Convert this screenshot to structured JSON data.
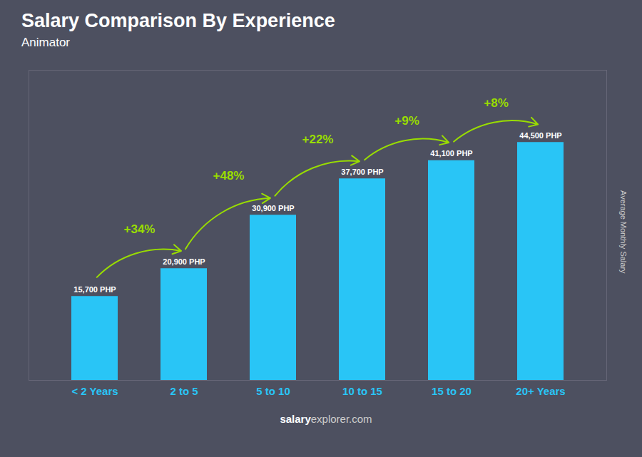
{
  "chart_data": {
    "type": "bar",
    "title": "Salary Comparison By Experience",
    "subtitle": "Animator",
    "ylabel": "Average Monthly Salary",
    "categories": [
      "< 2 Years",
      "2 to 5",
      "5 to 10",
      "10 to 15",
      "15 to 20",
      "20+ Years"
    ],
    "values": [
      15700,
      20900,
      30900,
      37700,
      41100,
      44500
    ],
    "value_labels": [
      "15,700 PHP",
      "20,900 PHP",
      "30,900 PHP",
      "37,700 PHP",
      "41,100 PHP",
      "44,500 PHP"
    ],
    "data_labels": true,
    "color": "#29c5f6",
    "ylim": [
      0,
      58000
    ],
    "tick_labels": "x",
    "grid": false,
    "annotations": [
      {
        "from": "< 2 Years",
        "to": "2 to 5",
        "text": "+34%",
        "color": "#99dd00"
      },
      {
        "from": "2 to 5",
        "to": "5 to 10",
        "text": "+48%",
        "color": "#99dd00"
      },
      {
        "from": "5 to 10",
        "to": "10 to 15",
        "text": "+22%",
        "color": "#99dd00"
      },
      {
        "from": "10 to 15",
        "to": "15 to 20",
        "text": "+9%",
        "color": "#99dd00"
      },
      {
        "from": "15 to 20",
        "to": "20+ Years",
        "text": "+8%",
        "color": "#99dd00"
      }
    ],
    "footer": [
      "salary",
      "explorer.com"
    ]
  }
}
